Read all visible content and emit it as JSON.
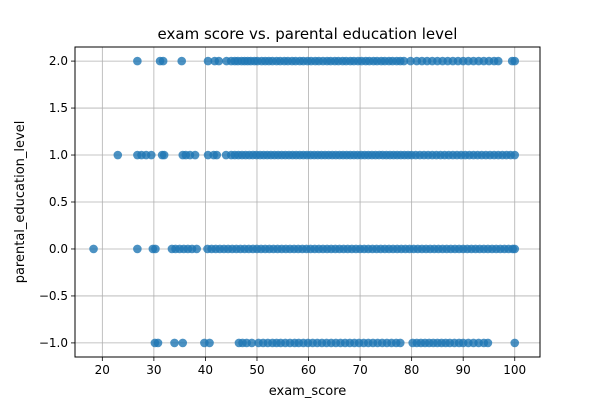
{
  "chart_data": {
    "type": "scatter",
    "title": "exam score vs. parental education level",
    "xlabel": "exam_score",
    "ylabel": "parental_education_level",
    "xlim": [
      14.7,
      104.9
    ],
    "ylim": [
      -1.15,
      2.15
    ],
    "xticks": [
      20,
      30,
      40,
      50,
      60,
      70,
      80,
      90,
      100
    ],
    "xtick_labels": [
      "20",
      "30",
      "40",
      "50",
      "60",
      "70",
      "80",
      "90",
      "100"
    ],
    "yticks": [
      -1.0,
      -0.5,
      0.0,
      0.5,
      1.0,
      1.5,
      2.0
    ],
    "ytick_labels": [
      "−1.0",
      "−0.5",
      "0.0",
      "0.5",
      "1.0",
      "1.5",
      "2.0"
    ],
    "grid": true,
    "marker_color": "#1f77b4",
    "series": [
      {
        "y": 2.0,
        "x": [
          26.8,
          31.2,
          31.8,
          35.4,
          40.5,
          41.8,
          42.6,
          44.1,
          45.0,
          45.7,
          46.3,
          47.0,
          47.6,
          48.2,
          48.8,
          49.5,
          50.1,
          50.9,
          51.6,
          52.3,
          53.0,
          53.8,
          54.5,
          55.3,
          56.0,
          56.8,
          57.5,
          58.3,
          59.0,
          59.8,
          60.5,
          61.3,
          62.0,
          62.8,
          63.6,
          64.3,
          65.1,
          65.8,
          66.6,
          67.3,
          68.1,
          68.8,
          69.6,
          70.3,
          71.1,
          71.8,
          72.6,
          73.3,
          74.1,
          74.8,
          75.6,
          76.3,
          77.1,
          77.8,
          78.5,
          79.8,
          81.0,
          82.0,
          83.0,
          84.0,
          85.0,
          86.0,
          87.0,
          88.0,
          89.0,
          90.0,
          91.0,
          92.0,
          93.0,
          94.0,
          95.0,
          96.0,
          96.8,
          99.5,
          100.0
        ]
      },
      {
        "y": 1.0,
        "x": [
          23.0,
          26.8,
          27.6,
          28.5,
          29.5,
          31.6,
          32.0,
          35.6,
          36.2,
          37.0,
          38.0,
          40.5,
          41.6,
          42.2,
          44.0,
          45.0,
          45.7,
          46.4,
          47.1,
          47.8,
          48.5,
          49.2,
          49.9,
          50.6,
          51.3,
          52.0,
          52.7,
          53.4,
          54.1,
          54.8,
          55.5,
          56.2,
          56.9,
          57.6,
          58.3,
          59.0,
          59.7,
          60.4,
          61.1,
          61.8,
          62.5,
          63.2,
          63.9,
          64.6,
          65.3,
          66.0,
          66.7,
          67.4,
          68.1,
          68.8,
          69.5,
          70.2,
          70.9,
          71.6,
          72.3,
          73.0,
          73.7,
          74.4,
          75.1,
          75.8,
          76.5,
          77.2,
          77.9,
          78.6,
          79.3,
          80.0,
          80.8,
          81.6,
          82.4,
          83.2,
          84.0,
          84.8,
          85.6,
          86.4,
          87.2,
          88.0,
          88.8,
          89.6,
          90.4,
          91.2,
          92.0,
          92.8,
          93.6,
          94.4,
          95.2,
          96.0,
          96.8,
          97.6,
          98.4,
          99.2,
          100.0
        ]
      },
      {
        "y": 0.0,
        "x": [
          18.3,
          26.8,
          29.8,
          30.3,
          33.5,
          34.2,
          35.0,
          35.8,
          36.6,
          37.4,
          38.3,
          40.4,
          41.2,
          42.0,
          42.8,
          43.6,
          44.4,
          45.2,
          46.0,
          46.8,
          47.6,
          48.4,
          49.2,
          50.0,
          50.8,
          51.6,
          52.4,
          53.2,
          54.0,
          54.8,
          55.6,
          56.4,
          57.2,
          58.0,
          58.8,
          59.6,
          60.4,
          61.2,
          62.0,
          62.8,
          63.6,
          64.4,
          65.2,
          66.0,
          66.8,
          67.6,
          68.4,
          69.2,
          70.0,
          70.8,
          71.6,
          72.4,
          73.2,
          74.0,
          74.8,
          75.6,
          76.4,
          77.2,
          78.0,
          78.8,
          79.6,
          80.4,
          81.2,
          82.0,
          82.8,
          83.6,
          84.4,
          85.2,
          86.0,
          86.8,
          87.6,
          88.4,
          89.2,
          90.0,
          90.8,
          91.6,
          92.4,
          93.2,
          94.0,
          94.8,
          95.6,
          96.4,
          97.2,
          98.0,
          98.8,
          99.6,
          100.0
        ]
      },
      {
        "y": -1.0,
        "x": [
          30.2,
          30.8,
          34.0,
          35.6,
          39.8,
          40.8,
          46.5,
          47.2,
          48.0,
          49.0,
          50.3,
          51.2,
          52.1,
          53.0,
          53.8,
          54.6,
          55.5,
          56.4,
          57.3,
          58.1,
          59.0,
          59.9,
          60.8,
          61.7,
          62.6,
          63.5,
          64.4,
          65.3,
          66.2,
          67.1,
          68.0,
          68.9,
          69.8,
          70.7,
          71.6,
          72.5,
          73.4,
          74.3,
          75.2,
          76.1,
          77.0,
          77.8,
          80.2,
          81.0,
          81.8,
          82.6,
          83.4,
          84.2,
          85.0,
          85.8,
          86.6,
          87.4,
          88.3,
          89.2,
          90.0,
          91.0,
          92.0,
          93.0,
          94.0,
          94.8,
          100.0
        ]
      }
    ]
  }
}
